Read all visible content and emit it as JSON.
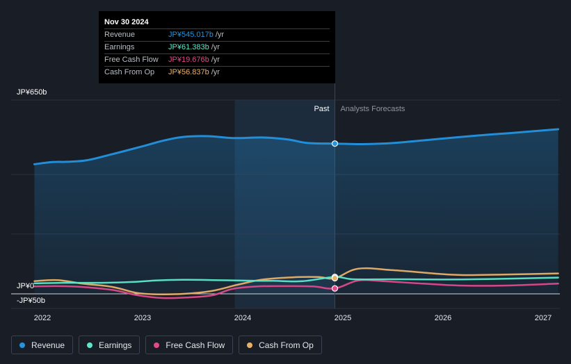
{
  "tooltip": {
    "date": "Nov 30 2024",
    "rows": [
      {
        "label": "Revenue",
        "value": "JP¥545.017b",
        "unit": "/yr",
        "color": "#2394df"
      },
      {
        "label": "Earnings",
        "value": "JP¥61.383b",
        "unit": "/yr",
        "color": "#5ce8c8"
      },
      {
        "label": "Free Cash Flow",
        "value": "JP¥19.676b",
        "unit": "/yr",
        "color": "#e2498a"
      },
      {
        "label": "Cash From Op",
        "value": "JP¥56.837b",
        "unit": "/yr",
        "color": "#e9b067"
      }
    ]
  },
  "legend": [
    {
      "label": "Revenue",
      "color": "#2394df"
    },
    {
      "label": "Earnings",
      "color": "#5ce8c8"
    },
    {
      "label": "Free Cash Flow",
      "color": "#e2498a"
    },
    {
      "label": "Cash From Op",
      "color": "#e9b067"
    }
  ],
  "chart_data": {
    "type": "line",
    "title": "",
    "xlabel": "",
    "ylabel": "",
    "y_axis_labels": [
      "JP¥650b",
      "JP¥0",
      "-JP¥50b"
    ],
    "ylim": [
      -50,
      650
    ],
    "xlim": [
      2021.9,
      2027.15
    ],
    "x_ticks": [
      {
        "value": 2022,
        "label": "2022"
      },
      {
        "value": 2023,
        "label": "2023"
      },
      {
        "value": 2024,
        "label": "2024"
      },
      {
        "value": 2025,
        "label": "2025"
      },
      {
        "value": 2026,
        "label": "2026"
      },
      {
        "value": 2027,
        "label": "2027"
      }
    ],
    "past_label": "Past",
    "forecast_label": "Analysts Forecasts",
    "past_end": 2024.92,
    "highlight_start": 2023.92,
    "grid": true,
    "series": [
      {
        "name": "Revenue",
        "color": "#2394df",
        "points": [
          [
            2021.92,
            470
          ],
          [
            2022.1,
            478
          ],
          [
            2022.25,
            479
          ],
          [
            2022.45,
            485
          ],
          [
            2022.7,
            507
          ],
          [
            2023.0,
            535
          ],
          [
            2023.2,
            555
          ],
          [
            2023.4,
            569
          ],
          [
            2023.65,
            572
          ],
          [
            2023.9,
            565
          ],
          [
            2024.2,
            567
          ],
          [
            2024.45,
            560
          ],
          [
            2024.65,
            547
          ],
          [
            2024.92,
            545.017
          ],
          [
            2025.2,
            543
          ],
          [
            2025.5,
            547
          ],
          [
            2025.9,
            560
          ],
          [
            2026.3,
            573
          ],
          [
            2026.7,
            584
          ],
          [
            2027.15,
            597
          ]
        ]
      },
      {
        "name": "Earnings",
        "color": "#5ce8c8",
        "points": [
          [
            2021.92,
            38
          ],
          [
            2022.2,
            40
          ],
          [
            2022.6,
            40
          ],
          [
            2022.9,
            43
          ],
          [
            2023.15,
            49
          ],
          [
            2023.4,
            51
          ],
          [
            2023.7,
            50
          ],
          [
            2024.0,
            48
          ],
          [
            2024.3,
            47
          ],
          [
            2024.6,
            46
          ],
          [
            2024.92,
            61.383
          ],
          [
            2025.1,
            53
          ],
          [
            2025.5,
            53
          ],
          [
            2026.0,
            52
          ],
          [
            2026.5,
            54
          ],
          [
            2027.15,
            59
          ]
        ]
      },
      {
        "name": "Free Cash Flow",
        "color": "#e2498a",
        "points": [
          [
            2021.92,
            27
          ],
          [
            2022.15,
            28
          ],
          [
            2022.4,
            25
          ],
          [
            2022.7,
            14
          ],
          [
            2022.95,
            -5
          ],
          [
            2023.2,
            -15
          ],
          [
            2023.45,
            -13
          ],
          [
            2023.7,
            -5
          ],
          [
            2023.9,
            18
          ],
          [
            2024.15,
            27
          ],
          [
            2024.4,
            28
          ],
          [
            2024.7,
            27
          ],
          [
            2024.92,
            19.676
          ],
          [
            2025.15,
            48
          ],
          [
            2025.4,
            46
          ],
          [
            2025.8,
            37
          ],
          [
            2026.2,
            30
          ],
          [
            2026.6,
            30
          ],
          [
            2027.15,
            37
          ]
        ]
      },
      {
        "name": "Cash From Op",
        "color": "#e9b067",
        "points": [
          [
            2021.92,
            46
          ],
          [
            2022.15,
            50
          ],
          [
            2022.4,
            37
          ],
          [
            2022.7,
            25
          ],
          [
            2022.95,
            3
          ],
          [
            2023.2,
            -2
          ],
          [
            2023.45,
            1
          ],
          [
            2023.7,
            11
          ],
          [
            2023.95,
            33
          ],
          [
            2024.2,
            52
          ],
          [
            2024.5,
            60
          ],
          [
            2024.75,
            61
          ],
          [
            2024.92,
            56.837
          ],
          [
            2025.15,
            91
          ],
          [
            2025.5,
            86
          ],
          [
            2025.9,
            74
          ],
          [
            2026.2,
            68
          ],
          [
            2026.6,
            70
          ],
          [
            2027.15,
            74
          ]
        ]
      }
    ]
  }
}
